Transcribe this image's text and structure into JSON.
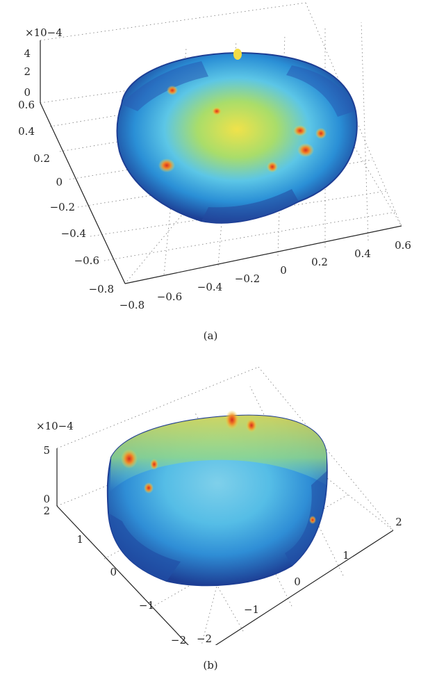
{
  "chart_data": [
    {
      "type": "surface",
      "panel_label": "(a)",
      "z_multiplier": "×10−4",
      "z_ticks": [
        "4",
        "2",
        "0"
      ],
      "y_ticks": [
        "0.6",
        "0.4",
        "0.2",
        "0",
        "−0.2",
        "−0.4",
        "−0.6",
        "−0.8"
      ],
      "x_ticks": [
        "−0.8",
        "−0.6",
        "−0.4",
        "−0.2",
        "0",
        "0.2",
        "0.4",
        "0.6"
      ],
      "x_range": [
        -0.8,
        0.6
      ],
      "y_range": [
        -0.8,
        0.6
      ],
      "z_range": [
        0,
        4
      ],
      "grid": true,
      "colormap": "jet"
    },
    {
      "type": "surface",
      "panel_label": "(b)",
      "z_multiplier": "×10−4",
      "z_ticks": [
        "5",
        "0"
      ],
      "y_ticks": [
        "2",
        "1",
        "0",
        "−1",
        "−2"
      ],
      "x_ticks": [
        "−2",
        "−1",
        "0",
        "1",
        "2"
      ],
      "x_range": [
        -2,
        2
      ],
      "y_range": [
        -2,
        2
      ],
      "z_range": [
        0,
        5
      ],
      "grid": true,
      "colormap": "jet"
    }
  ]
}
